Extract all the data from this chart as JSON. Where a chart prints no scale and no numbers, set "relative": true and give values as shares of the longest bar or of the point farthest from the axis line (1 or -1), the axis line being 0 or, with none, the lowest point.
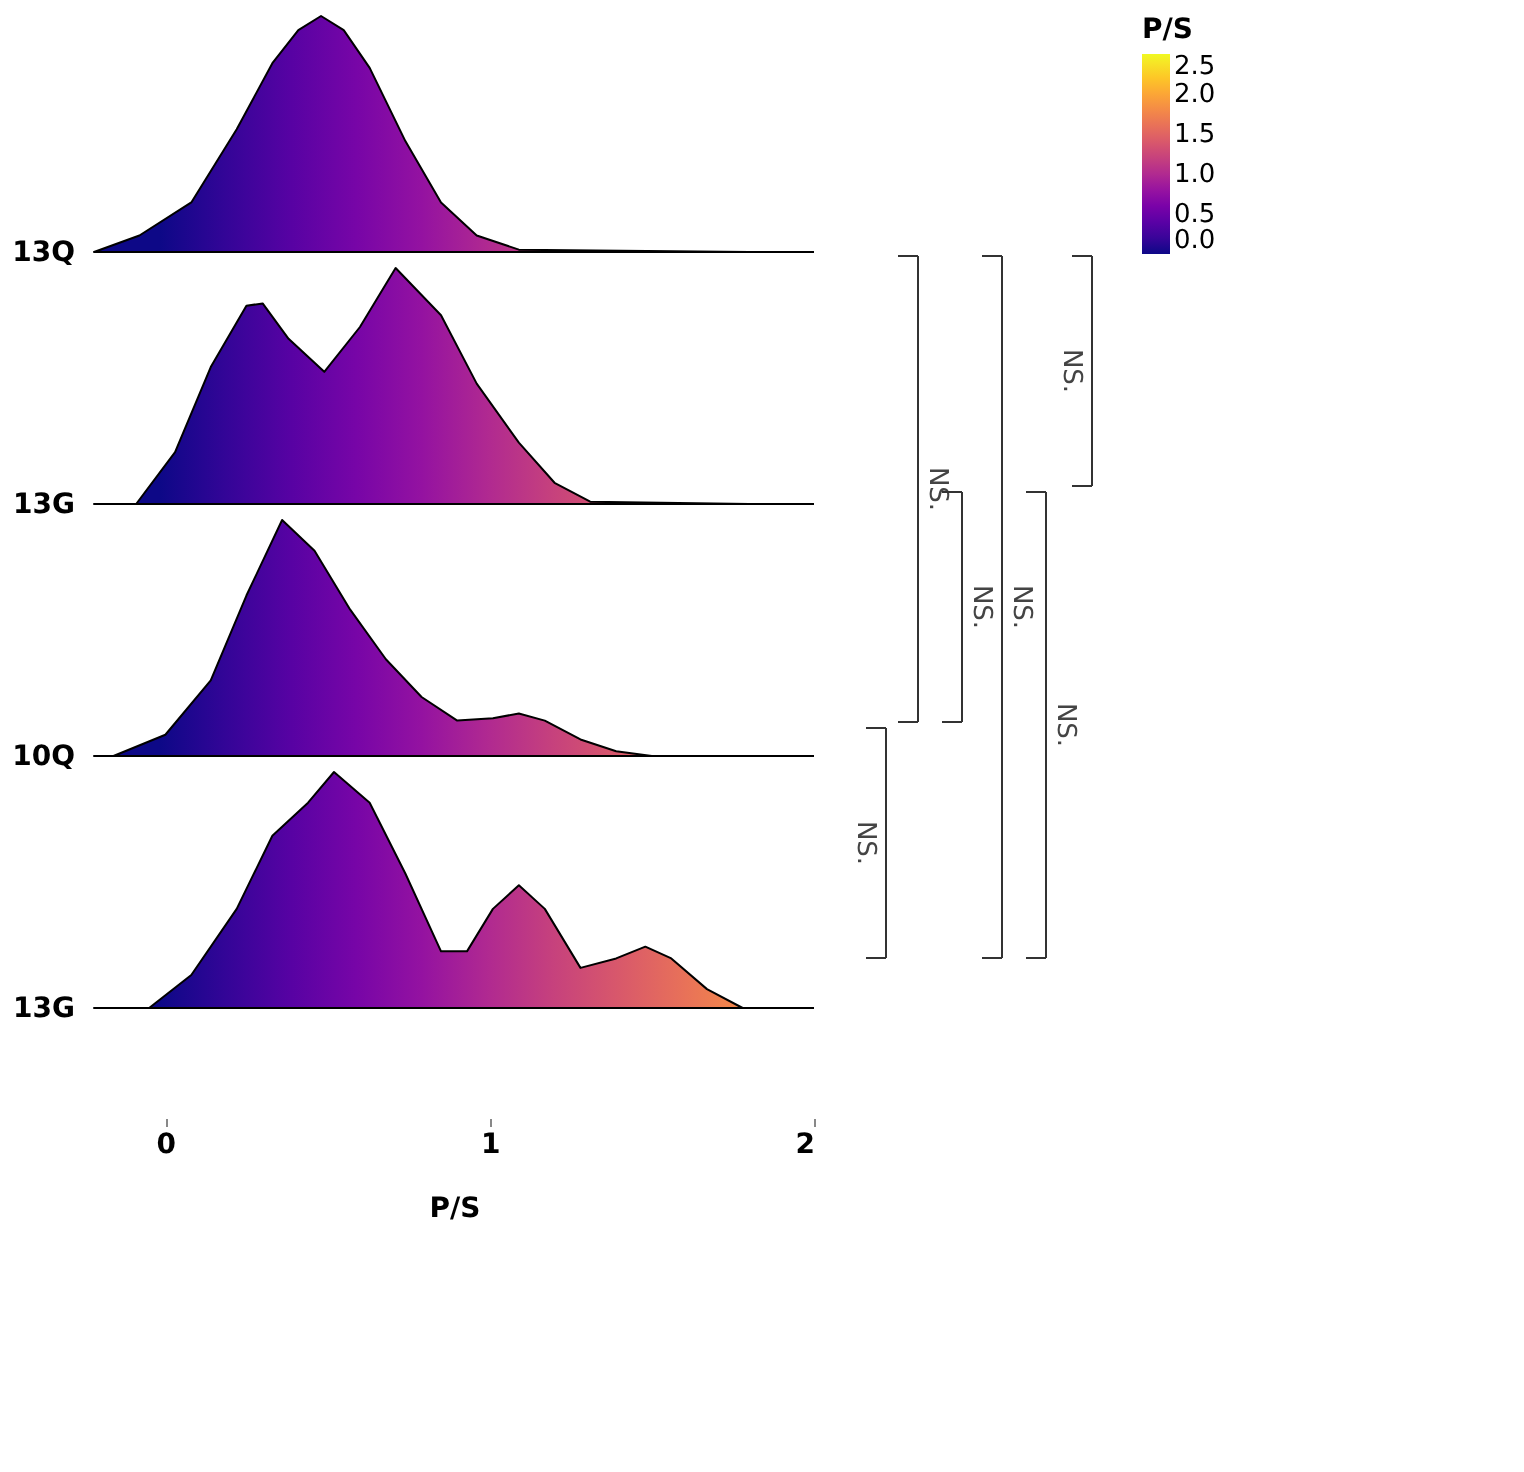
{
  "chart_data": [
    {
      "type": "area",
      "relative": true,
      "ylabel": "13Q",
      "xlim": [
        -0.22,
        2
      ],
      "tick_labels": false,
      "grid": false,
      "clabel": "P/S",
      "clim": [
        0,
        2.5
      ],
      "cticks": [
        {
          "value": 0,
          "label": "0.0"
        },
        {
          "value": 0.5,
          "label": "0.5"
        },
        {
          "value": 1,
          "label": "1.0"
        },
        {
          "value": 1.5,
          "label": "1.5"
        },
        {
          "value": 2,
          "label": "2.0"
        },
        {
          "value": 2.5,
          "label": "2.5"
        }
      ],
      "x": [
        -0.22,
        -0.08,
        0.08,
        0.22,
        0.33,
        0.41,
        0.48,
        0.55,
        0.63,
        0.74,
        0.85,
        0.96,
        1.09,
        1.8
      ],
      "values": [
        0,
        0.07,
        0.21,
        0.52,
        0.8,
        0.94,
        1,
        0.94,
        0.78,
        0.47,
        0.21,
        0.07,
        0.01,
        0
      ],
      "annotations": [
        "NS.",
        "NS.",
        "NS.",
        "NS.",
        "NS.",
        "NS."
      ]
    },
    {
      "type": "area",
      "relative": true,
      "ylabel": "13G",
      "xlim": [
        -0.22,
        2
      ],
      "tick_labels": false,
      "grid": false,
      "x": [
        -0.22,
        -0.09,
        0.03,
        0.14,
        0.25,
        0.3,
        0.38,
        0.49,
        0.6,
        0.71,
        0.85,
        0.96,
        1.09,
        1.2,
        1.31,
        1.8
      ],
      "values": [
        0,
        0,
        0.22,
        0.58,
        0.84,
        0.85,
        0.7,
        0.56,
        0.75,
        1,
        0.8,
        0.51,
        0.26,
        0.09,
        0.01,
        0
      ]
    },
    {
      "type": "area",
      "relative": true,
      "ylabel": "10Q",
      "xlim": [
        -0.22,
        2
      ],
      "tick_labels": false,
      "grid": false,
      "x": [
        -0.22,
        -0.16,
        0,
        0.14,
        0.25,
        0.36,
        0.46,
        0.57,
        0.68,
        0.79,
        0.9,
        1.01,
        1.09,
        1.17,
        1.28,
        1.39,
        1.5,
        1.8
      ],
      "values": [
        0,
        0,
        0.09,
        0.32,
        0.68,
        1.0,
        0.87,
        0.62,
        0.41,
        0.25,
        0.15,
        0.16,
        0.18,
        0.15,
        0.07,
        0.02,
        0,
        0
      ]
    },
    {
      "type": "area",
      "relative": true,
      "ylabel": "13G",
      "xlabel": "P/S",
      "xlim": [
        -0.22,
        2
      ],
      "xticks": [
        0,
        1,
        2
      ],
      "tick_labels": "x",
      "grid": false,
      "x": [
        -0.22,
        -0.05,
        0.08,
        0.22,
        0.33,
        0.44,
        0.52,
        0.63,
        0.74,
        0.85,
        0.93,
        1.01,
        1.09,
        1.17,
        1.28,
        1.39,
        1.48,
        1.56,
        1.67,
        1.78,
        1.8
      ],
      "values": [
        0,
        0,
        0.14,
        0.42,
        0.73,
        0.87,
        1,
        0.87,
        0.57,
        0.24,
        0.24,
        0.42,
        0.52,
        0.42,
        0.17,
        0.21,
        0.26,
        0.21,
        0.08,
        0,
        0
      ]
    }
  ]
}
